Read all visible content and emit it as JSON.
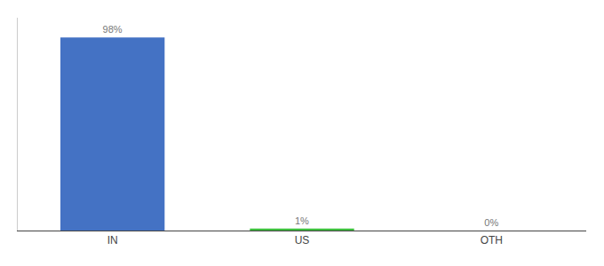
{
  "chart_data": {
    "type": "bar",
    "categories": [
      "IN",
      "US",
      "OTH"
    ],
    "values": [
      98,
      1,
      0
    ],
    "value_labels": [
      "98%",
      "1%",
      "0%"
    ],
    "data_labels": true,
    "colors": [
      "#4472c4",
      "#3dbf3d",
      "#4472c4"
    ],
    "ylim": [
      0,
      108
    ],
    "grid": false,
    "tick_labels": "x"
  }
}
